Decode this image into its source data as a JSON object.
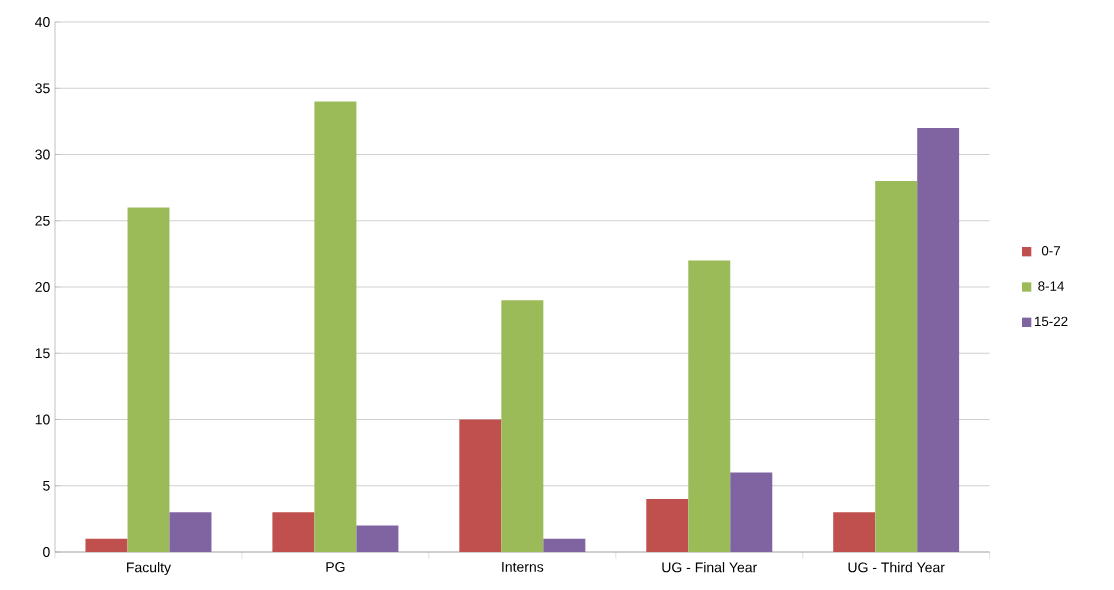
{
  "chart_data": {
    "type": "bar",
    "categories": [
      "Faculty",
      "PG",
      "Interns",
      "UG - Final Year",
      "UG - Third Year"
    ],
    "series": [
      {
        "name": "0-7",
        "color": "#c0504d",
        "values": [
          1,
          3,
          10,
          4,
          3
        ]
      },
      {
        "name": "8-14",
        "color": "#9bbb59",
        "values": [
          26,
          34,
          19,
          22,
          28
        ]
      },
      {
        "name": "15-22",
        "color": "#8064a2",
        "values": [
          3,
          2,
          1,
          6,
          32
        ]
      }
    ],
    "ylim": [
      0,
      40
    ],
    "yticks": [
      0,
      5,
      10,
      15,
      20,
      25,
      30,
      35,
      40
    ],
    "grid": "y",
    "legend": "right"
  }
}
